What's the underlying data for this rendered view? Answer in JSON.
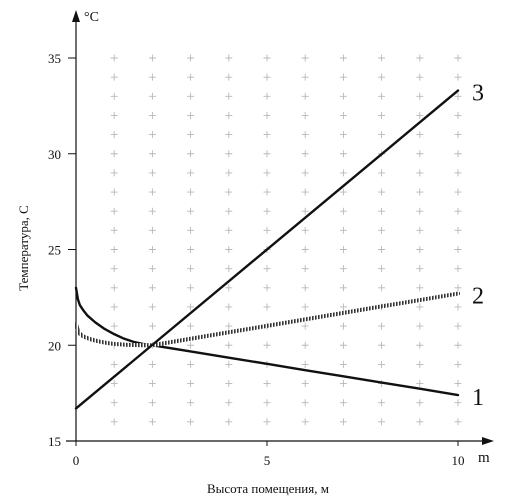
{
  "chart_data": {
    "type": "line",
    "xlabel": "Высота помещения, м",
    "ylabel": "Температура, С",
    "x_unit": "m",
    "y_unit": "°C",
    "xlim": [
      0,
      10
    ],
    "ylim": [
      15,
      35
    ],
    "x_ticks": [
      0,
      5,
      10
    ],
    "y_ticks": [
      15,
      20,
      25,
      30,
      35
    ],
    "grid": "plus-markers",
    "grid_x_step": 1,
    "grid_y_step": 1,
    "series": [
      {
        "name": "1",
        "style": "solid",
        "color": "#111111",
        "x": [
          0,
          0.05,
          0.1,
          0.2,
          0.3,
          0.5,
          0.75,
          1.0,
          1.25,
          1.5,
          1.75,
          2.0,
          3,
          4,
          5,
          6,
          7,
          8,
          9,
          10
        ],
        "y": [
          23.0,
          22.4,
          22.1,
          21.8,
          21.55,
          21.2,
          20.85,
          20.58,
          20.35,
          20.18,
          20.07,
          20.0,
          19.68,
          19.35,
          19.03,
          18.7,
          18.38,
          18.05,
          17.73,
          17.4
        ]
      },
      {
        "name": "2",
        "style": "hatched",
        "color": "#333333",
        "x": [
          0,
          0.05,
          0.1,
          0.2,
          0.4,
          0.6,
          0.8,
          1.0,
          1.25,
          1.5,
          1.75,
          2.0,
          3,
          4,
          5,
          6,
          7,
          8,
          9,
          10
        ],
        "y": [
          21.1,
          20.75,
          20.6,
          20.45,
          20.3,
          20.2,
          20.12,
          20.07,
          20.03,
          20.01,
          20.0,
          20.0,
          20.34,
          20.68,
          21.01,
          21.35,
          21.69,
          22.03,
          22.36,
          22.7
        ]
      },
      {
        "name": "3",
        "style": "solid",
        "color": "#111111",
        "x": [
          0,
          10
        ],
        "y": [
          16.7,
          33.3
        ]
      }
    ]
  }
}
